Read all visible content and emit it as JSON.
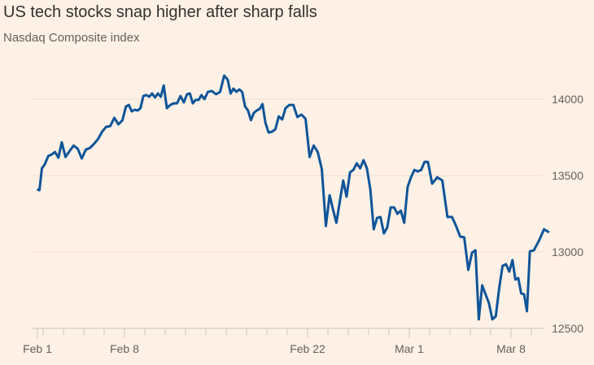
{
  "colors": {
    "background": "#FFF1E5",
    "line": "#0F5499",
    "grid": "#E9DED5",
    "text": "#33302E",
    "muted": "#66605C"
  },
  "chart_data": {
    "type": "line",
    "title": "US tech stocks snap higher after sharp falls",
    "subtitle": "Nasdaq Composite index",
    "xlabel": "",
    "ylabel": "",
    "ylim": [
      12500,
      14250
    ],
    "yticks": [
      12500,
      13000,
      13500,
      14000
    ],
    "y_axis_position": "right",
    "grid": true,
    "x_tick_labels": [
      "Feb 1",
      "Feb 8",
      "Feb 22",
      "Mar 1",
      "Mar 8"
    ],
    "series": [
      {
        "intraday_by_trading_day": [
          {
            "day": "Feb 1",
            "values": [
              13410,
              13404,
              13548
            ]
          },
          {
            "day": "Feb 2",
            "values": [
              13574,
              13628,
              13638,
              13654,
              13617,
              13718
            ]
          },
          {
            "day": "Feb 3",
            "values": [
              13622,
              13660,
              13697,
              13676,
              13612
            ]
          },
          {
            "day": "Feb 4",
            "values": [
              13670,
              13681,
              13707,
              13739,
              13787
            ]
          },
          {
            "day": "Feb 5",
            "values": [
              13819,
              13824,
              13878,
              13835,
              13862
            ]
          },
          {
            "day": "Feb 8",
            "values": [
              13952,
              13962,
              13920,
              13931,
              13926,
              13941,
              14021
            ]
          },
          {
            "day": "Feb 9",
            "values": [
              14027,
              14016,
              14037,
              14011,
              14037,
              14016,
              14090
            ]
          },
          {
            "day": "Feb 10",
            "values": [
              13941,
              13962,
              13973,
              13973,
              14021,
              13979
            ]
          },
          {
            "day": "Feb 11",
            "values": [
              14032,
              14037,
              13973,
              13995,
              13995,
              14027,
              14000
            ]
          },
          {
            "day": "Feb 12",
            "values": [
              14048,
              14053,
              14032,
              14048,
              14154
            ]
          },
          {
            "day": "Feb 16",
            "values": [
              14128,
              14037,
              14069,
              14048,
              14064,
              14048,
              13952
            ]
          },
          {
            "day": "Feb 17",
            "values": [
              13926,
              13862,
              13910,
              13926,
              13936,
              13968,
              13846
            ]
          },
          {
            "day": "Feb 18",
            "values": [
              13782,
              13787,
              13803,
              13888,
              13867,
              13941
            ]
          },
          {
            "day": "Feb 19",
            "values": [
              13962,
              13962,
              13883,
              13899,
              13872
            ]
          },
          {
            "day": "Feb 22",
            "values": [
              13622,
              13697,
              13654,
              13542,
              13170
            ]
          },
          {
            "day": "Feb 23",
            "values": [
              13372,
              13277,
              13191,
              13330,
              13468,
              13362
            ]
          },
          {
            "day": "Feb 24",
            "values": [
              13521,
              13537,
              13580,
              13548,
              13601,
              13548
            ]
          },
          {
            "day": "Feb 25",
            "values": [
              13410,
              13149,
              13223,
              13229,
              13122,
              13160
            ]
          },
          {
            "day": "Feb 26",
            "values": [
              13292,
              13292,
              13250,
              13271,
              13191,
              13425
            ]
          },
          {
            "day": "Mar 1",
            "values": [
              13489,
              13537,
              13527,
              13537,
              13590,
              13590
            ]
          },
          {
            "day": "Mar 2",
            "values": [
              13447,
              13489,
              13468,
              13229
            ]
          },
          {
            "day": "Mar 3",
            "values": [
              13229,
              13170,
              13101,
              13096,
              12883
            ]
          },
          {
            "day": "Mar 4",
            "values": [
              12995,
              13011,
              12559,
              12782,
              12723,
              12665
            ]
          },
          {
            "day": "Mar 5",
            "values": [
              12559,
              12580,
              12760,
              12909,
              12920,
              12872
            ]
          },
          {
            "day": "Mar 8",
            "values": [
              12947,
              12819,
              12830,
              12729,
              12723,
              12612,
              13005
            ]
          },
          {
            "day": "Mar 9",
            "values": [
              13011,
              13074,
              13149,
              13128
            ]
          }
        ]
      }
    ]
  }
}
